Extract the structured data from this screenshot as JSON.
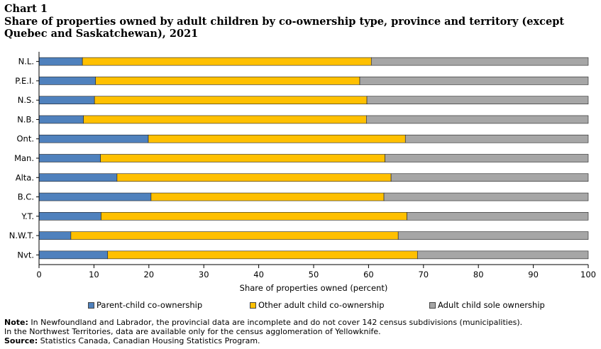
{
  "chart_label": "Chart 1",
  "chart_title": "Share of properties owned by adult children by co-ownership type, province and territory (except Quebec and Saskatchewan), 2021",
  "chart_data": {
    "type": "bar",
    "orientation": "horizontal",
    "stacked": true,
    "categories": [
      "N.L.",
      "P.E.I.",
      "N.S.",
      "N.B.",
      "Ont.",
      "Man.",
      "Alta.",
      "B.C.",
      "Y.T.",
      "N.W.T.",
      "Nvt."
    ],
    "series": [
      {
        "name": "Parent-child co-ownership",
        "color": "#4f81bd",
        "values": [
          7.9,
          10.3,
          10.1,
          8.1,
          19.9,
          11.2,
          14.2,
          20.4,
          11.3,
          5.8,
          12.5
        ]
      },
      {
        "name": "Other adult child co-ownership",
        "color": "#ffc000",
        "values": [
          52.6,
          48.1,
          49.6,
          51.5,
          46.8,
          51.8,
          49.9,
          42.4,
          55.7,
          59.6,
          56.4
        ]
      },
      {
        "name": "Adult child sole ownership",
        "color": "#a6a6a6",
        "values": [
          39.5,
          41.6,
          40.3,
          40.4,
          33.3,
          37.0,
          35.9,
          37.2,
          33.0,
          34.6,
          31.1
        ]
      }
    ],
    "xlabel": "Share of properties owned (percent)",
    "xlim": [
      0,
      100
    ],
    "xticks": [
      0,
      10,
      20,
      30,
      40,
      50,
      60,
      70,
      80,
      90,
      100
    ],
    "grid": false,
    "legend_position": "bottom"
  },
  "footnotes": {
    "note_label": "Note:",
    "note_line1": "In Newfoundland and Labrador, the provincial data are incomplete and do not cover 142 census subdivisions (municipalities).",
    "note_line2": "In the Northwest Territories, data are available only for the census agglomeration of Yellowknife.",
    "source_label": "Source:",
    "source_text": "Statistics Canada, Canadian Housing Statistics Program."
  }
}
